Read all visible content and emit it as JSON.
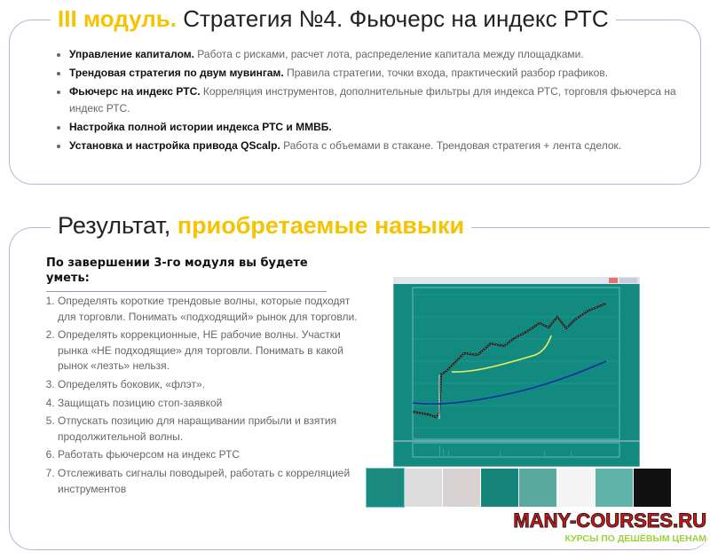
{
  "module": {
    "title_accent": "III модуль.",
    "title_rest": " Стратегия №4. Фьючерс на индекс РТС",
    "items": [
      {
        "bold": "Управление капиталом.",
        "text": " Работа с рисками, расчет лота, распределение капитала между площадками."
      },
      {
        "bold": "Трендовая стратегия по двум мувингам.",
        "text": " Правила стратегии, точки входа, практический разбор графиков."
      },
      {
        "bold": "Фьючерс на индекс РТС.",
        "text": " Корреляция инструментов, дополнительные фильтры для индекса РТС, торговля фьючерса на индекс РТС."
      },
      {
        "bold": "Настройка полной истории индекса РТС и ММВБ.",
        "text": ""
      },
      {
        "bold": "Установка и настройка привода QScalp.",
        "text": " Работа с объемами в стакане. Трендовая стратегия + лента сделок."
      }
    ]
  },
  "result": {
    "title_plain": "Результат, ",
    "title_accent": "приобретаемые навыки",
    "subtitle": "По завершении 3-го модуля вы будете уметь:",
    "skills": [
      "Определять короткие трендовые волны, которые подходят для торговли. Понимать «подходящий» рынок для торговли.",
      "Определять коррекционные, НЕ рабочие волны. Участки рынка «НЕ подходящие» для торговли. Понимать в какой рынок «лезть» нельзя.",
      "Определять боковик, «флэт».",
      "Защищать позицию стоп-заявкой",
      "Отпускать позицию для наращивании прибыли и взятия продолжительной волны.",
      "Работать фьючерсом на индекс РТС",
      "Отслеживать сигналы поводырей, работать с корреляцией инструментов"
    ]
  },
  "watermark": {
    "line1": "MANY-COURSES.RU",
    "line2": "КУРСЫ ПО ДЕШЁВЫМ ЦЕНАМ"
  },
  "colors": {
    "accent": "#f6c300",
    "border": "#c2aed4",
    "chart_bg": "#138a80"
  }
}
